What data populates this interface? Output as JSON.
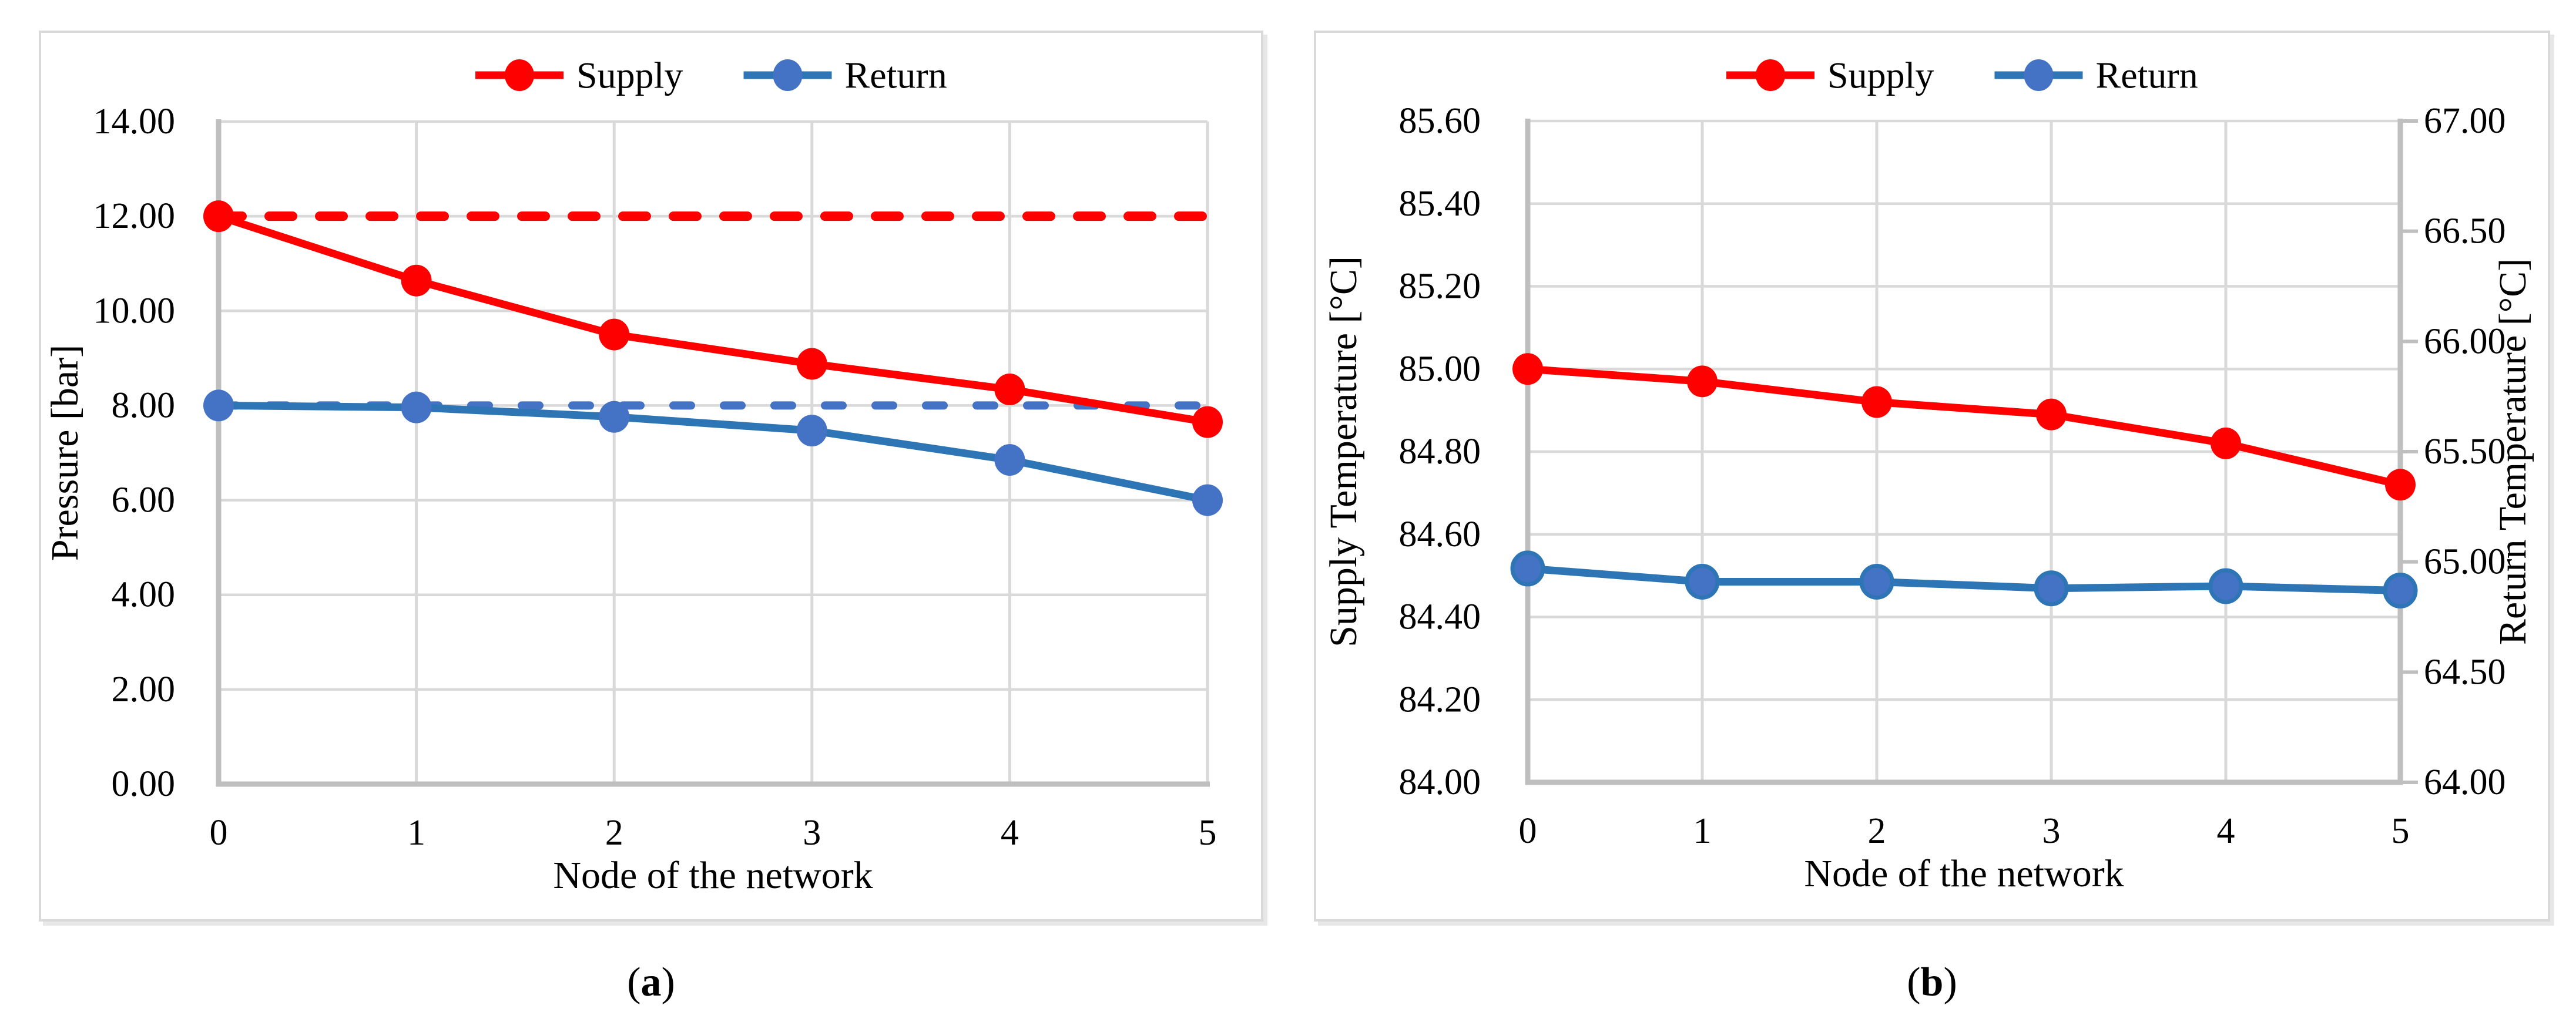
{
  "page": {
    "background": "#FFFFFF",
    "captions": [
      {
        "open": "(",
        "letter": "a",
        "close": ")"
      },
      {
        "open": "(",
        "letter": "b",
        "close": ")"
      }
    ]
  },
  "colors": {
    "supply": "#FF0000",
    "return_line": "#2E75B6",
    "return_marker": "#4472C4",
    "grid": "#D9D9D9",
    "axis": "#BFBFBF",
    "text": "#000000",
    "panel_border": "#D9D9D9"
  },
  "chart_data": [
    {
      "type": "line",
      "panel": "a",
      "x_title": "Node of the network",
      "x_ticks": [
        "0",
        "1",
        "2",
        "3",
        "4",
        "5"
      ],
      "x_values": [
        0,
        1,
        2,
        3,
        4,
        5
      ],
      "y_left": {
        "title": "Pressure [bar]",
        "min": 0,
        "max": 14,
        "step": 2,
        "tick_labels": [
          "0.00",
          "2.00",
          "4.00",
          "6.00",
          "8.00",
          "10.00",
          "12.00",
          "14.00"
        ]
      },
      "grid": true,
      "legend_position": "top-center",
      "legend": [
        {
          "label": "Supply",
          "line_key": "supply",
          "marker_key": "supply"
        },
        {
          "label": "Return",
          "line_key": "return_line",
          "marker_key": "return_marker"
        }
      ],
      "series": [
        {
          "name": "Supply (dashed)",
          "axis": "left",
          "style": "dashed",
          "line_key": "supply",
          "markers": false,
          "values": [
            12.0,
            12.0,
            12.0,
            12.0,
            12.0,
            12.0
          ]
        },
        {
          "name": "Return (dashed)",
          "axis": "left",
          "style": "dashed",
          "line_key": "return_marker",
          "markers": false,
          "values": [
            8.0,
            8.0,
            8.0,
            8.0,
            8.0,
            8.0
          ]
        },
        {
          "name": "Supply",
          "axis": "left",
          "style": "solid",
          "line_key": "supply",
          "markers": true,
          "marker_key": "supply",
          "values": [
            12.0,
            10.64,
            9.5,
            8.88,
            8.34,
            7.65
          ]
        },
        {
          "name": "Return",
          "axis": "left",
          "style": "solid",
          "line_key": "return_line",
          "markers": true,
          "marker_key": "return_marker",
          "values": [
            8.0,
            7.96,
            7.76,
            7.47,
            6.85,
            6.0
          ]
        }
      ]
    },
    {
      "type": "line",
      "panel": "b",
      "x_title": "Node of the network",
      "x_ticks": [
        "0",
        "1",
        "2",
        "3",
        "4",
        "5"
      ],
      "x_values": [
        0,
        1,
        2,
        3,
        4,
        5
      ],
      "y_left": {
        "title": "Supply Temperature [°C]",
        "min": 84.0,
        "max": 85.6,
        "step": 0.2,
        "tick_labels": [
          "84.00",
          "84.20",
          "84.40",
          "84.60",
          "84.80",
          "85.00",
          "85.20",
          "85.40",
          "85.60"
        ]
      },
      "y_right": {
        "title": "Return Temperature [°C]",
        "min": 64.0,
        "max": 67.0,
        "step": 0.5,
        "tick_labels": [
          "64.00",
          "64.50",
          "65.00",
          "65.50",
          "66.00",
          "66.50",
          "67.00"
        ]
      },
      "grid": true,
      "legend_position": "top-center",
      "legend": [
        {
          "label": "Supply",
          "line_key": "supply",
          "marker_key": "supply"
        },
        {
          "label": "Return",
          "line_key": "return_line",
          "marker_key": "return_marker"
        }
      ],
      "series": [
        {
          "name": "Supply",
          "axis": "left",
          "style": "solid",
          "line_key": "supply",
          "markers": true,
          "marker_key": "supply",
          "values": [
            85.0,
            84.97,
            84.92,
            84.89,
            84.82,
            84.72
          ]
        },
        {
          "name": "Return",
          "axis": "right",
          "style": "solid",
          "line_key": "return_line",
          "markers": true,
          "marker_key": "return_marker",
          "marker_stroke_key": "return_line",
          "values": [
            64.97,
            64.91,
            64.91,
            64.88,
            64.89,
            64.87
          ]
        }
      ]
    }
  ]
}
